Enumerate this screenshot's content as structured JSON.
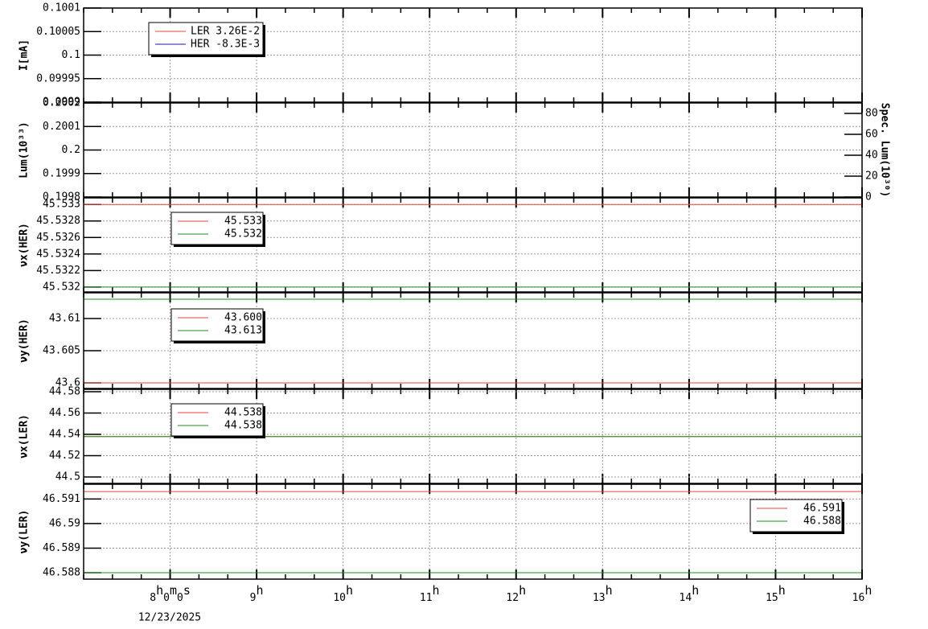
{
  "chart_data": [
    {
      "type": "line",
      "y_label": "I[mA]",
      "ylim": [
        0.0999,
        0.1001
      ],
      "yticks": [
        0.0999,
        0.09995,
        0.1,
        0.10005,
        0.1001
      ],
      "grid": true,
      "series": [
        {
          "name": "LER  3.26E-2",
          "color": "#e8453c"
        },
        {
          "name": "HER  -8.3E-3",
          "color": "#1a1aa8"
        }
      ]
    },
    {
      "type": "line",
      "y_label": "Lum(10³³)",
      "ylim": [
        0.1998,
        0.2002
      ],
      "yticks": [
        0.1998,
        0.1999,
        0.2,
        0.2001,
        0.2002
      ],
      "grid": true,
      "y2_label": "Spec. Lum(10³⁰)",
      "y2lim": [
        0,
        90
      ],
      "y2ticks": [
        0,
        20,
        40,
        60,
        80
      ],
      "series": []
    },
    {
      "type": "line",
      "y_label": "νx(HER)",
      "ylim": [
        45.53194,
        45.53308
      ],
      "yticks": [
        45.532,
        45.5322,
        45.5324,
        45.5326,
        45.5328,
        45.533
      ],
      "grid": true,
      "series": [
        {
          "name": "45.533",
          "color": "#e8453c",
          "x": [
            7,
            16
          ],
          "values": [
            45.533,
            45.533
          ]
        },
        {
          "name": "45.532",
          "color": "#1e8c1e",
          "x": [
            7,
            16
          ],
          "values": [
            45.532,
            45.532
          ]
        }
      ]
    },
    {
      "type": "line",
      "y_label": "νy(HER)",
      "ylim": [
        43.59913,
        43.614
      ],
      "yticks": [
        43.6,
        43.605,
        43.61
      ],
      "grid": true,
      "series": [
        {
          "name": "43.600",
          "color": "#e8453c",
          "x": [
            7,
            16
          ],
          "values": [
            43.6,
            43.6
          ]
        },
        {
          "name": "43.613",
          "color": "#1e8c1e",
          "x": [
            7,
            16
          ],
          "values": [
            43.613,
            43.613
          ]
        }
      ]
    },
    {
      "type": "line",
      "y_label": "νx(LER)",
      "ylim": [
        44.494,
        44.5823
      ],
      "yticks": [
        44.5,
        44.52,
        44.54,
        44.56,
        44.58
      ],
      "grid": true,
      "series": [
        {
          "name": "44.538",
          "color": "#e8453c",
          "x": [
            7,
            16
          ],
          "values": [
            44.538,
            44.538
          ]
        },
        {
          "name": "44.538",
          "color": "#1e8c1e",
          "x": [
            7,
            16
          ],
          "values": [
            44.538,
            44.538
          ]
        }
      ]
    },
    {
      "type": "line",
      "y_label": "νy(LER)",
      "ylim": [
        46.58774,
        46.5916
      ],
      "yticks": [
        46.588,
        46.589,
        46.59,
        46.591
      ],
      "grid": true,
      "series": [
        {
          "name": "46.591",
          "color": "#e8453c",
          "x": [
            7,
            16
          ],
          "values": [
            46.5913,
            46.5913
          ]
        },
        {
          "name": "46.588",
          "color": "#1e8c1e",
          "x": [
            7,
            16
          ],
          "values": [
            46.588,
            46.588
          ]
        }
      ],
      "x_label": "12/23/2025",
      "xlim": [
        7,
        16
      ],
      "xticks": [
        {
          "value": 8,
          "label": "8h0m0s"
        },
        {
          "value": 9,
          "label": "9h"
        },
        {
          "value": 10,
          "label": "10h"
        },
        {
          "value": 11,
          "label": "11h"
        },
        {
          "value": 12,
          "label": "12h"
        },
        {
          "value": 13,
          "label": "13h"
        },
        {
          "value": 14,
          "label": "14h"
        },
        {
          "value": 15,
          "label": "15h"
        },
        {
          "value": 16,
          "label": "16h"
        }
      ]
    }
  ]
}
